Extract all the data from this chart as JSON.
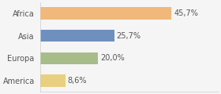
{
  "categories": [
    "Africa",
    "Asia",
    "Europa",
    "America"
  ],
  "values": [
    45.7,
    25.7,
    20.0,
    8.6
  ],
  "labels": [
    "45,7%",
    "25,7%",
    "20,0%",
    "8,6%"
  ],
  "bar_colors": [
    "#f0b87a",
    "#6f8fbf",
    "#a8bc8a",
    "#e8d080"
  ],
  "background_color": "#f5f5f5",
  "xlim": [
    0,
    62
  ],
  "label_fontsize": 7.0,
  "category_fontsize": 7.0,
  "bar_height": 0.55
}
